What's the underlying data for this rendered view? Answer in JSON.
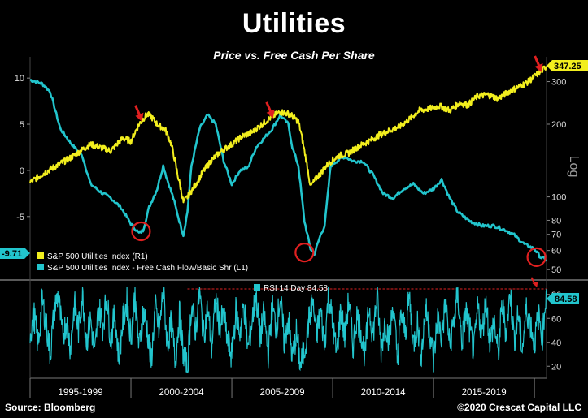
{
  "header": {
    "title": "Utilities",
    "subtitle": "Price vs. Free Cash Per Share"
  },
  "footer": {
    "source": "Source: Bloomberg",
    "copyright": "©2020 Crescat Capital LLC"
  },
  "colors": {
    "price": "#f2ee1e",
    "fcf": "#22c5cd",
    "rsi": "#22c5cd",
    "annotation": "#e02020",
    "rsi_ref": "#e02020"
  },
  "chart_data": [
    {
      "type": "line",
      "x_range": [
        1995,
        2020.6
      ],
      "x_tick_labels": [
        "1995-1999",
        "2000-2004",
        "2005-2009",
        "2010-2014",
        "2015-2019"
      ],
      "left_axis": {
        "ticks": [
          10,
          5,
          0,
          -5
        ],
        "ylim": [
          -11.7,
          12.3
        ]
      },
      "right_axis": {
        "scale": "log",
        "label": "Log",
        "ticks": [
          300,
          200,
          100,
          80,
          70,
          60,
          50
        ],
        "ylim": [
          46,
          380
        ]
      },
      "legend_position": "bottom-left",
      "series": [
        {
          "name": "S&P 500 Utilities Index (R1)",
          "axis": "right",
          "last_value": "347.25",
          "x": [
            1995.0,
            1996.0,
            1997.0,
            1998.0,
            1999.0,
            1999.6,
            2000.0,
            2000.4,
            2000.8,
            2001.0,
            2001.3,
            2001.7,
            2002.0,
            2002.3,
            2002.6,
            2002.8,
            2003.2,
            2003.6,
            2004.0,
            2004.5,
            2005.0,
            2005.5,
            2006.0,
            2006.5,
            2007.0,
            2007.4,
            2007.9,
            2008.3,
            2008.6,
            2008.9,
            2009.2,
            2009.4,
            2009.6,
            2009.9,
            2010.3,
            2010.8,
            2011.3,
            2011.8,
            2012.3,
            2012.8,
            2013.3,
            2013.8,
            2014.3,
            2014.8,
            2015.3,
            2015.8,
            2016.3,
            2016.7,
            2017.2,
            2017.7,
            2018.2,
            2018.7,
            2019.2,
            2019.7,
            2020.1,
            2020.4,
            2020.6
          ],
          "y": [
            115,
            130,
            145,
            165,
            155,
            175,
            170,
            200,
            220,
            215,
            200,
            190,
            165,
            125,
            95,
            100,
            112,
            128,
            142,
            155,
            165,
            178,
            185,
            200,
            215,
            225,
            220,
            205,
            155,
            110,
            120,
            125,
            132,
            140,
            148,
            152,
            162,
            170,
            180,
            188,
            195,
            210,
            228,
            232,
            238,
            228,
            245,
            240,
            262,
            265,
            255,
            272,
            285,
            300,
            320,
            335,
            347.25
          ]
        },
        {
          "name": "S&P 500 Utilities Index - Free Cash Flow/Basic Shr (L1)",
          "axis": "left",
          "last_value": "-9.71",
          "x": [
            1995.0,
            1995.6,
            1996.0,
            1996.5,
            1997.0,
            1997.6,
            1998.0,
            1998.6,
            1999.0,
            1999.5,
            2000.0,
            2000.4,
            2000.6,
            2000.9,
            2001.3,
            2001.6,
            2001.8,
            2002.1,
            2002.4,
            2002.6,
            2002.8,
            2003.0,
            2003.4,
            2003.8,
            2004.2,
            2004.6,
            2005.0,
            2005.4,
            2005.8,
            2006.2,
            2006.6,
            2007.0,
            2007.4,
            2007.8,
            2008.0,
            2008.3,
            2008.6,
            2008.9,
            2009.1,
            2009.4,
            2009.6,
            2009.9,
            2010.2,
            2010.6,
            2011.0,
            2011.5,
            2012.0,
            2012.5,
            2013.0,
            2013.5,
            2014.0,
            2014.5,
            2015.0,
            2015.4,
            2015.8,
            2016.2,
            2016.8,
            2017.4,
            2018.0,
            2018.6,
            2019.0,
            2019.5,
            2020.0,
            2020.3,
            2020.6
          ],
          "y": [
            9.8,
            9.4,
            8.5,
            4.5,
            3.0,
            1.5,
            -1.5,
            -2.5,
            -3.0,
            -4.0,
            -5.8,
            -6.8,
            -6.5,
            -4.0,
            -2.0,
            0.5,
            -1.0,
            -3.0,
            -5.5,
            -7.0,
            -4.5,
            0.5,
            4.5,
            6.0,
            5.0,
            1.0,
            -1.5,
            0.0,
            0.3,
            2.5,
            3.5,
            4.5,
            6.0,
            5.0,
            2.5,
            0.5,
            -5.5,
            -8.5,
            -9.0,
            -7.0,
            -6.0,
            0.5,
            1.0,
            1.5,
            1.0,
            1.0,
            -0.5,
            -2.5,
            -3.0,
            -2.0,
            -1.5,
            -2.5,
            -2.0,
            -1.0,
            -3.0,
            -4.5,
            -5.5,
            -6.0,
            -6.0,
            -6.5,
            -7.0,
            -8.0,
            -8.5,
            -9.4,
            -9.71
          ]
        }
      ],
      "annotations": [
        {
          "type": "arrow",
          "x": 2000.3,
          "y": 225,
          "axis": "right"
        },
        {
          "type": "arrow",
          "x": 2006.8,
          "y": 232,
          "axis": "right"
        },
        {
          "type": "arrow",
          "x": 2020.1,
          "y": 360,
          "axis": "right"
        },
        {
          "type": "circle",
          "x": 2000.5,
          "y": -6.6,
          "axis": "left"
        },
        {
          "type": "circle",
          "x": 2008.6,
          "y": -8.9,
          "axis": "left"
        },
        {
          "type": "circle",
          "x": 2020.1,
          "y": -9.4,
          "axis": "left"
        }
      ]
    },
    {
      "type": "line",
      "x_range": [
        1995,
        2020.6
      ],
      "y_axis": {
        "ticks": [
          80,
          60,
          40,
          20
        ],
        "ylim": [
          10,
          90
        ]
      },
      "legend_position": "top-center",
      "reference_line": {
        "y": 84.58,
        "style": "dashed"
      },
      "series": [
        {
          "name": "RSI 14 Day 84.58",
          "last_value": "84.58",
          "x": [
            1995.0,
            1995.2,
            1995.4,
            1995.6,
            1995.8,
            1996.0,
            1996.2,
            1996.4,
            1996.6,
            1996.8,
            1997.0,
            1997.2,
            1997.4,
            1997.6,
            1997.8,
            1998.0,
            1998.2,
            1998.4,
            1998.6,
            1998.8,
            1999.0,
            1999.2,
            1999.4,
            1999.6,
            1999.8,
            2000.0,
            2000.2,
            2000.4,
            2000.6,
            2000.8,
            2001.0,
            2001.2,
            2001.4,
            2001.6,
            2001.8,
            2002.0,
            2002.2,
            2002.4,
            2002.6,
            2002.8,
            2003.0,
            2003.2,
            2003.4,
            2003.6,
            2003.8,
            2004.0,
            2004.2,
            2004.4,
            2004.6,
            2004.8,
            2005.0,
            2005.2,
            2005.4,
            2005.6,
            2005.8,
            2006.0,
            2006.2,
            2006.4,
            2006.6,
            2006.8,
            2007.0,
            2007.2,
            2007.4,
            2007.6,
            2007.8,
            2008.0,
            2008.2,
            2008.4,
            2008.6,
            2008.8,
            2009.0,
            2009.2,
            2009.4,
            2009.6,
            2009.8,
            2010.0,
            2010.2,
            2010.4,
            2010.6,
            2010.8,
            2011.0,
            2011.2,
            2011.4,
            2011.6,
            2011.8,
            2012.0,
            2012.2,
            2012.4,
            2012.6,
            2012.8,
            2013.0,
            2013.2,
            2013.4,
            2013.6,
            2013.8,
            2014.0,
            2014.2,
            2014.4,
            2014.6,
            2014.8,
            2015.0,
            2015.2,
            2015.4,
            2015.6,
            2015.8,
            2016.0,
            2016.2,
            2016.4,
            2016.6,
            2016.8,
            2017.0,
            2017.2,
            2017.4,
            2017.6,
            2017.8,
            2018.0,
            2018.2,
            2018.4,
            2018.6,
            2018.8,
            2019.0,
            2019.2,
            2019.4,
            2019.6,
            2019.8,
            2020.0,
            2020.2,
            2020.4,
            2020.6
          ],
          "y": [
            48,
            62,
            38,
            75,
            55,
            30,
            68,
            80,
            45,
            58,
            36,
            72,
            50,
            82,
            40,
            60,
            28,
            70,
            54,
            78,
            42,
            64,
            26,
            58,
            74,
            44,
            80,
            34,
            66,
            52,
            22,
            70,
            48,
            84,
            38,
            56,
            24,
            64,
            30,
            18,
            72,
            50,
            82,
            46,
            68,
            36,
            76,
            54,
            62,
            40,
            28,
            66,
            48,
            72,
            34,
            58,
            80,
            44,
            64,
            30,
            70,
            52,
            78,
            40,
            60,
            26,
            48,
            20,
            34,
            56,
            74,
            46,
            66,
            38,
            82,
            54,
            30,
            68,
            44,
            76,
            36,
            62,
            50,
            28,
            70,
            46,
            80,
            34,
            58,
            42,
            72,
            26,
            64,
            48,
            78,
            38,
            56,
            30,
            68,
            52,
            24,
            62,
            44,
            74,
            36,
            58,
            80,
            40,
            66,
            50,
            32,
            70,
            46,
            76,
            38,
            60,
            28,
            72,
            48,
            82,
            42,
            64,
            34,
            68,
            56,
            40,
            62,
            46,
            84.58
          ]
        }
      ]
    }
  ]
}
